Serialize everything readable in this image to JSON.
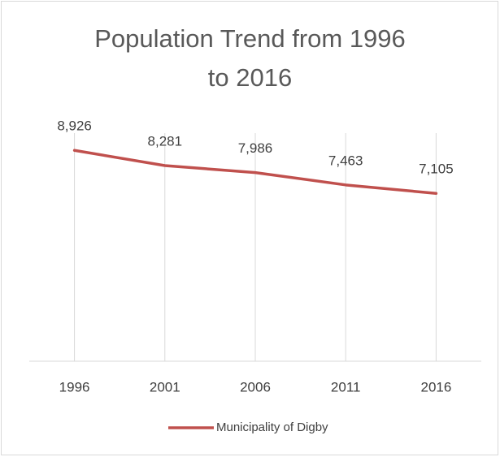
{
  "chart_data": {
    "type": "line",
    "title": "Population Trend from 1996 to 2016",
    "categories": [
      "1996",
      "2001",
      "2006",
      "2011",
      "2016"
    ],
    "series": [
      {
        "name": "Municipality of Digby",
        "color": "#c0504d",
        "values": [
          8926,
          8281,
          7986,
          7463,
          7105
        ],
        "value_labels": [
          "8,926",
          "8,281",
          "7,986",
          "7,463",
          "7,105"
        ]
      }
    ],
    "ylim": [
      0,
      10000
    ],
    "grid": true,
    "legend": "bottom"
  }
}
